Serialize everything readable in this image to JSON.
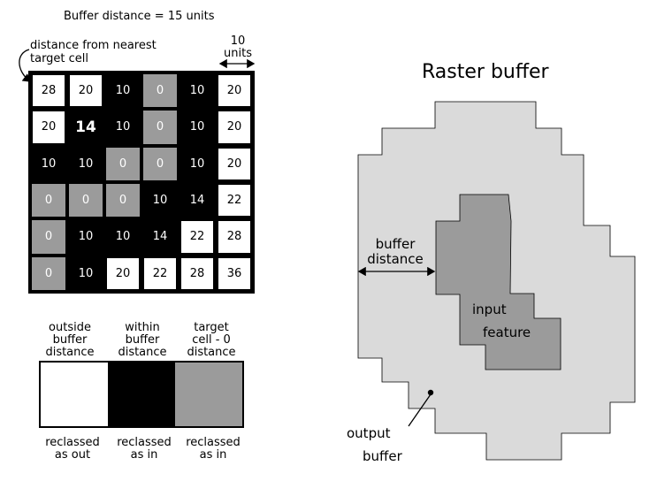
{
  "grid": {
    "title": "Buffer distance = 15 units",
    "annotation": "distance from nearest\ntarget cell",
    "scale_label": "10\nunits",
    "rows": [
      [
        {
          "v": "28",
          "t": "w"
        },
        {
          "v": "20",
          "t": "w"
        },
        {
          "v": "10",
          "t": "b"
        },
        {
          "v": "0",
          "t": "g"
        },
        {
          "v": "10",
          "t": "b"
        },
        {
          "v": "20",
          "t": "w"
        }
      ],
      [
        {
          "v": "20",
          "t": "w"
        },
        {
          "v": "14",
          "t": "b"
        },
        {
          "v": "10",
          "t": "b"
        },
        {
          "v": "0",
          "t": "g"
        },
        {
          "v": "10",
          "t": "b"
        },
        {
          "v": "20",
          "t": "w"
        }
      ],
      [
        {
          "v": "10",
          "t": "b"
        },
        {
          "v": "10",
          "t": "b"
        },
        {
          "v": "0",
          "t": "g"
        },
        {
          "v": "0",
          "t": "g"
        },
        {
          "v": "10",
          "t": "b"
        },
        {
          "v": "20",
          "t": "w"
        }
      ],
      [
        {
          "v": "0",
          "t": "g"
        },
        {
          "v": "0",
          "t": "g"
        },
        {
          "v": "0",
          "t": "g"
        },
        {
          "v": "10",
          "t": "b"
        },
        {
          "v": "14",
          "t": "b"
        },
        {
          "v": "22",
          "t": "w"
        }
      ],
      [
        {
          "v": "0",
          "t": "g"
        },
        {
          "v": "10",
          "t": "b"
        },
        {
          "v": "10",
          "t": "b"
        },
        {
          "v": "14",
          "t": "b"
        },
        {
          "v": "22",
          "t": "w"
        },
        {
          "v": "28",
          "t": "w"
        }
      ],
      [
        {
          "v": "0",
          "t": "g"
        },
        {
          "v": "10",
          "t": "b"
        },
        {
          "v": "20",
          "t": "w"
        },
        {
          "v": "22",
          "t": "w"
        },
        {
          "v": "28",
          "t": "w"
        },
        {
          "v": "36",
          "t": "w"
        }
      ]
    ]
  },
  "legend": {
    "top_labels": [
      "outside\nbuffer\ndistance",
      "within\nbuffer\ndistance",
      "target\ncell - 0\ndistance"
    ],
    "bottom_labels": [
      "reclassed\nas out",
      "reclassed\nas in",
      "reclassed\nas in"
    ],
    "colors": [
      "#ffffff",
      "#000000",
      "#9b9b9b"
    ]
  },
  "diagram": {
    "title": "Raster buffer",
    "buffer_distance_label": "buffer\ndistance",
    "input_label_1": "input",
    "input_label_2": "feature",
    "output_label_1": "output",
    "output_label_2": "buffer",
    "buffer_color": "#dadada",
    "input_color": "#9b9b9b"
  }
}
